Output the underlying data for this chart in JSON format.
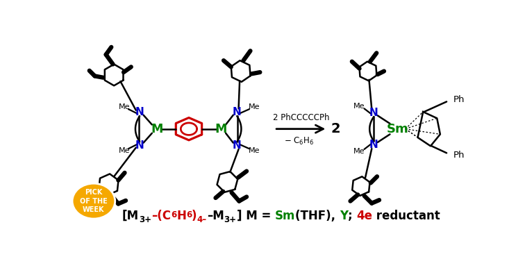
{
  "fig_width": 7.56,
  "fig_height": 3.73,
  "dpi": 100,
  "background_color": "#ffffff",
  "badge_color": "#f5a800",
  "badge_text_color": "#ffffff",
  "badge_text": "PICK\nOF THE\nWEEK",
  "reaction_above": "2 PhCCCCCPh",
  "metal_color": "#008000",
  "N_color": "#0000cc",
  "benzene_color": "#cc0000",
  "red_color": "#cc0000",
  "green_color": "#008000",
  "black_color": "#000000",
  "formula_segments": [
    [
      "[M",
      "#000000",
      0,
      12
    ],
    [
      "3+",
      "#000000",
      -5,
      8.5
    ],
    [
      "–(C",
      "#cc0000",
      0,
      12
    ],
    [
      "6",
      "#cc0000",
      4,
      8.5
    ],
    [
      "H",
      "#cc0000",
      0,
      12
    ],
    [
      "6",
      "#cc0000",
      4,
      8.5
    ],
    [
      ")",
      "#cc0000",
      0,
      12
    ],
    [
      "4–",
      "#cc0000",
      -5,
      8.5
    ],
    [
      "–M",
      "#000000",
      0,
      12
    ],
    [
      "3+",
      "#000000",
      -5,
      8.5
    ],
    [
      "] M = ",
      "#000000",
      0,
      12
    ],
    [
      "Sm",
      "#008000",
      0,
      12
    ],
    [
      "(THF), ",
      "#000000",
      0,
      12
    ],
    [
      "Y",
      "#008000",
      0,
      12
    ],
    [
      "; ",
      "#000000",
      0,
      12
    ],
    [
      "4e",
      "#cc0000",
      0,
      12
    ],
    [
      " reductant",
      "#000000",
      0,
      12
    ]
  ]
}
